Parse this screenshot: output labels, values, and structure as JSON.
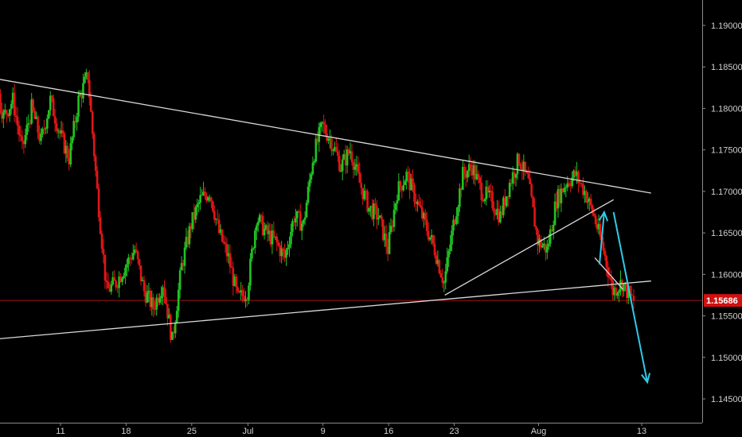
{
  "colors": {
    "background": "#000000",
    "bull": "#22c322",
    "bear": "#e01616",
    "trendline": "#d9d9d9",
    "projection": "#31c9e6",
    "price_line": "#a01414",
    "price_tag": "#d01010",
    "axis_text": "#cfcfcf",
    "axis_line": "#8a8a8a"
  },
  "chart_data": {
    "type": "candlestick",
    "title": "",
    "xlabel": "",
    "ylabel": "",
    "ylim": [
      1.1425,
      1.1935
    ],
    "x_range_days": [
      -4,
      73
    ],
    "grid": false,
    "x_ticks": [
      {
        "day": 10,
        "label": "11"
      },
      {
        "day": 17,
        "label": "18"
      },
      {
        "day": 24,
        "label": "25"
      },
      {
        "day": 30,
        "label": "Jul"
      },
      {
        "day": 38,
        "label": "9"
      },
      {
        "day": 45,
        "label": "16"
      },
      {
        "day": 52,
        "label": "23"
      },
      {
        "day": 61,
        "label": "Aug"
      },
      {
        "day": 72,
        "label": "13"
      }
    ],
    "y_ticks": [
      "1.19000",
      "1.18500",
      "1.18000",
      "1.17500",
      "1.17000",
      "1.16500",
      "1.16000",
      "1.15500",
      "1.15000",
      "1.14500"
    ],
    "last_price": {
      "value": 1.15686,
      "label": "1.15686"
    },
    "anchors": [
      [
        -4,
        1.172
      ],
      [
        -2,
        1.168
      ],
      [
        -1,
        1.176
      ],
      [
        1,
        1.18
      ],
      [
        3,
        1.184
      ],
      [
        4,
        1.179
      ],
      [
        5,
        1.181
      ],
      [
        6,
        1.175
      ],
      [
        7,
        1.18
      ],
      [
        8,
        1.176
      ],
      [
        9,
        1.181
      ],
      [
        10,
        1.177
      ],
      [
        11,
        1.174
      ],
      [
        12,
        1.181
      ],
      [
        13,
        1.184
      ],
      [
        14,
        1.17
      ],
      [
        15,
        1.158
      ],
      [
        16,
        1.159
      ],
      [
        17,
        1.161
      ],
      [
        18,
        1.163
      ],
      [
        19,
        1.158
      ],
      [
        20,
        1.156
      ],
      [
        21,
        1.159
      ],
      [
        22,
        1.152
      ],
      [
        23,
        1.161
      ],
      [
        24,
        1.166
      ],
      [
        25,
        1.169
      ],
      [
        26,
        1.17
      ],
      [
        27,
        1.165
      ],
      [
        28,
        1.162
      ],
      [
        29,
        1.157
      ],
      [
        30,
        1.158
      ],
      [
        31,
        1.167
      ],
      [
        32,
        1.165
      ],
      [
        33,
        1.164
      ],
      [
        34,
        1.162
      ],
      [
        35,
        1.167
      ],
      [
        36,
        1.166
      ],
      [
        37,
        1.174
      ],
      [
        38,
        1.178
      ],
      [
        39,
        1.176
      ],
      [
        40,
        1.173
      ],
      [
        41,
        1.175
      ],
      [
        42,
        1.171
      ],
      [
        43,
        1.168
      ],
      [
        44,
        1.167
      ],
      [
        45,
        1.163
      ],
      [
        46,
        1.17
      ],
      [
        47,
        1.172
      ],
      [
        48,
        1.169
      ],
      [
        49,
        1.166
      ],
      [
        50,
        1.163
      ],
      [
        51,
        1.159
      ],
      [
        52,
        1.166
      ],
      [
        53,
        1.172
      ],
      [
        54,
        1.173
      ],
      [
        55,
        1.17
      ],
      [
        56,
        1.169
      ],
      [
        57,
        1.167
      ],
      [
        58,
        1.171
      ],
      [
        59,
        1.174
      ],
      [
        60,
        1.171
      ],
      [
        61,
        1.164
      ],
      [
        62,
        1.163
      ],
      [
        63,
        1.169
      ],
      [
        64,
        1.171
      ],
      [
        65,
        1.172
      ],
      [
        66,
        1.17
      ],
      [
        67,
        1.167
      ],
      [
        68,
        1.163
      ],
      [
        69,
        1.158
      ],
      [
        70,
        1.159
      ],
      [
        71,
        1.157
      ]
    ],
    "trendlines": [
      {
        "name": "upper-resistance",
        "points": [
          [
            1,
            1.184
          ],
          [
            73,
            1.1698
          ]
        ]
      },
      {
        "name": "lower-support",
        "points": [
          [
            -4,
            1.1515
          ],
          [
            73,
            1.1592
          ]
        ]
      },
      {
        "name": "rising-wedge-line",
        "points": [
          [
            51,
            1.1575
          ],
          [
            69,
            1.169
          ]
        ]
      },
      {
        "name": "short-down-line",
        "points": [
          [
            67,
            1.162
          ],
          [
            70,
            1.1582
          ]
        ]
      }
    ],
    "projections": [
      {
        "name": "up-arrow",
        "points": [
          [
            67.5,
            1.1612
          ],
          [
            68.0,
            1.1675
          ]
        ]
      },
      {
        "name": "down-arrow",
        "points": [
          [
            69.0,
            1.1675
          ],
          [
            72.6,
            1.147
          ]
        ]
      }
    ]
  }
}
